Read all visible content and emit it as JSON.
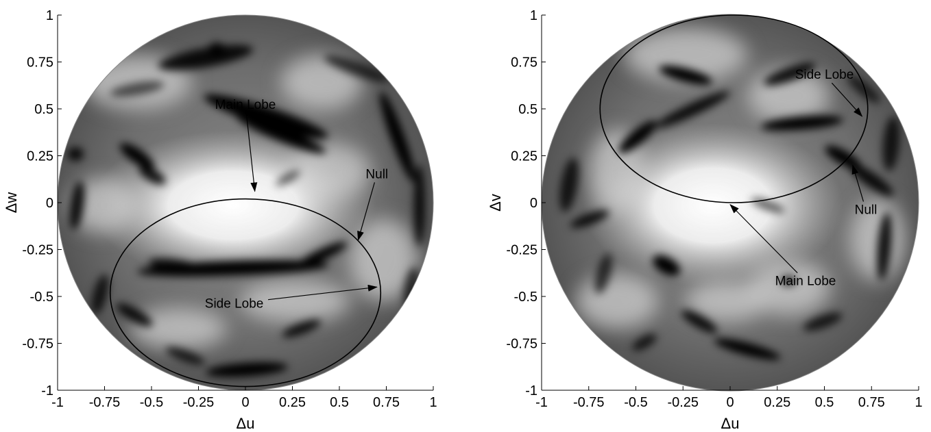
{
  "chart_data": [
    {
      "type": "heatmap",
      "description_type": "beam pattern on unit circle (grayscale intensity)",
      "xlabel": "Δu",
      "ylabel": "Δw",
      "xlim": [
        -1,
        1
      ],
      "ylim": [
        -1,
        1
      ],
      "xticks": [
        "-1",
        "-0.75",
        "-0.5",
        "-0.25",
        "0",
        "0.25",
        "0.5",
        "0.75",
        "1"
      ],
      "yticks": [
        "-1",
        "-0.75",
        "-0.5",
        "-0.25",
        "0",
        "0.25",
        "0.5",
        "0.75",
        "1"
      ],
      "grid": false,
      "colormap": "grayscale (black low, white high)",
      "ellipse": {
        "center": [
          0,
          -0.48
        ],
        "rx": 0.72,
        "ry": 0.5
      },
      "annotations": [
        {
          "text": "Main Lobe",
          "text_at": [
            0.0,
            0.5
          ],
          "arrow_to": [
            0.05,
            0.06
          ]
        },
        {
          "text": "Null",
          "text_at": [
            0.7,
            0.13
          ],
          "arrow_to": [
            0.6,
            -0.2
          ]
        },
        {
          "text": "Side Lobe",
          "text_at": [
            -0.06,
            -0.56
          ],
          "arrow_to": [
            0.7,
            -0.45
          ]
        }
      ]
    },
    {
      "type": "heatmap",
      "description_type": "beam pattern on unit circle (grayscale intensity)",
      "xlabel": "Δu",
      "ylabel": "Δv",
      "xlim": [
        -1,
        1
      ],
      "ylim": [
        -1,
        1
      ],
      "xticks": [
        "-1",
        "-0.75",
        "-0.5",
        "-0.25",
        "0",
        "0.25",
        "0.5",
        "0.75",
        "1"
      ],
      "yticks": [
        "-1",
        "-0.75",
        "-0.5",
        "-0.25",
        "0",
        "0.25",
        "0.5",
        "0.75",
        "1"
      ],
      "grid": false,
      "colormap": "grayscale (black low, white high)",
      "ellipse": {
        "center": [
          0.02,
          0.5
        ],
        "rx": 0.71,
        "ry": 0.5
      },
      "annotations": [
        {
          "text": "Side Lobe",
          "text_at": [
            0.5,
            0.66
          ],
          "arrow_to": [
            0.7,
            0.46
          ]
        },
        {
          "text": "Null",
          "text_at": [
            0.72,
            -0.06
          ],
          "arrow_to": [
            0.65,
            0.2
          ]
        },
        {
          "text": "Main Lobe",
          "text_at": [
            0.4,
            -0.44
          ],
          "arrow_to": [
            0.0,
            -0.01
          ]
        }
      ]
    }
  ]
}
